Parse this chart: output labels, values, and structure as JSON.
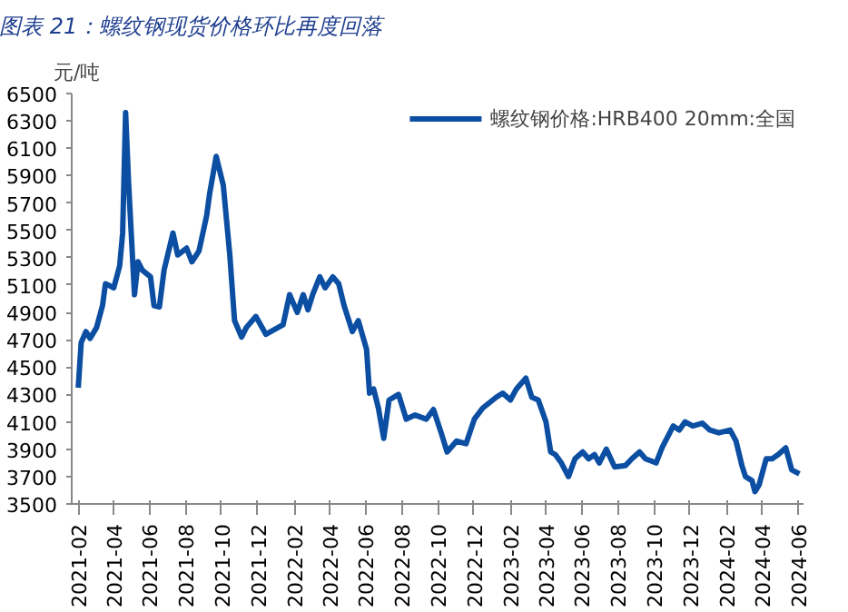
{
  "chart_data": {
    "type": "line",
    "title": "图表 21：螺纹钢现货价格环比再度回落",
    "ylabel": "元/吨",
    "x": [
      "2021-02-01",
      "2021-02-06",
      "2021-02-14",
      "2021-02-21",
      "2021-03-04",
      "2021-03-14",
      "2021-03-19",
      "2021-04-02",
      "2021-04-12",
      "2021-04-17",
      "2021-04-22",
      "2021-04-27",
      "2021-05-07",
      "2021-05-13",
      "2021-05-20",
      "2021-06-03",
      "2021-06-09",
      "2021-06-18",
      "2021-06-26",
      "2021-07-11",
      "2021-07-19",
      "2021-08-03",
      "2021-08-12",
      "2021-08-24",
      "2021-09-06",
      "2021-09-11",
      "2021-09-22",
      "2021-10-04",
      "2021-10-15",
      "2021-10-23",
      "2021-11-04",
      "2021-11-12",
      "2021-11-28",
      "2021-12-15",
      "2022-01-13",
      "2022-01-24",
      "2022-02-06",
      "2022-02-16",
      "2022-02-24",
      "2022-03-04",
      "2022-03-16",
      "2022-03-25",
      "2022-04-07",
      "2022-04-17",
      "2022-04-26",
      "2022-05-10",
      "2022-05-20",
      "2022-06-03",
      "2022-06-08",
      "2022-06-15",
      "2022-06-23",
      "2022-07-02",
      "2022-07-11",
      "2022-07-27",
      "2022-08-09",
      "2022-08-24",
      "2022-09-12",
      "2022-09-24",
      "2022-10-07",
      "2022-10-17",
      "2022-11-02",
      "2022-11-18",
      "2022-12-02",
      "2022-12-16",
      "2023-01-08",
      "2023-01-19",
      "2023-02-01",
      "2023-02-11",
      "2023-02-27",
      "2023-03-09",
      "2023-03-20",
      "2023-04-02",
      "2023-04-10",
      "2023-04-18",
      "2023-04-28",
      "2023-05-10",
      "2023-05-21",
      "2023-06-03",
      "2023-06-13",
      "2023-06-23",
      "2023-07-01",
      "2023-07-13",
      "2023-07-27",
      "2023-08-14",
      "2023-08-25",
      "2023-09-07",
      "2023-09-17",
      "2023-10-05",
      "2023-10-15",
      "2023-11-03",
      "2023-11-13",
      "2023-11-23",
      "2023-12-06",
      "2023-12-22",
      "2024-01-04",
      "2024-01-19",
      "2024-02-07",
      "2024-02-17",
      "2024-02-27",
      "2024-03-04",
      "2024-03-15",
      "2024-03-20",
      "2024-03-27",
      "2024-04-08",
      "2024-04-18",
      "2024-04-28",
      "2024-05-11",
      "2024-05-21",
      "2024-06-03"
    ],
    "series": [
      {
        "name": "螺纹钢价格:HRB400 20mm:全国",
        "color": "#0b4ea2",
        "values": [
          4350,
          4680,
          4760,
          4710,
          4790,
          4950,
          5110,
          5080,
          5240,
          5480,
          6360,
          5850,
          5030,
          5270,
          5210,
          5160,
          4950,
          4940,
          5210,
          5480,
          5320,
          5370,
          5270,
          5350,
          5610,
          5770,
          6040,
          5830,
          5320,
          4840,
          4720,
          4790,
          4870,
          4740,
          4810,
          5030,
          4900,
          5030,
          4920,
          5030,
          5160,
          5080,
          5160,
          5110,
          4950,
          4760,
          4840,
          4630,
          4310,
          4340,
          4200,
          3980,
          4260,
          4300,
          4120,
          4150,
          4120,
          4190,
          4020,
          3880,
          3960,
          3940,
          4120,
          4200,
          4280,
          4310,
          4260,
          4340,
          4420,
          4280,
          4260,
          4100,
          3880,
          3860,
          3800,
          3700,
          3830,
          3880,
          3830,
          3860,
          3800,
          3900,
          3770,
          3780,
          3830,
          3880,
          3830,
          3800,
          3910,
          4070,
          4040,
          4100,
          4070,
          4090,
          4040,
          4020,
          4040,
          3960,
          3780,
          3700,
          3670,
          3590,
          3640,
          3830,
          3830,
          3860,
          3910,
          3750,
          3720
        ]
      }
    ],
    "xlim": [
      "2021-01-21",
      "2024-06-10"
    ],
    "xticks": [
      "2021-02",
      "2021-04",
      "2021-06",
      "2021-08",
      "2021-10",
      "2021-12",
      "2022-02",
      "2022-04",
      "2022-06",
      "2022-08",
      "2022-10",
      "2022-12",
      "2023-02",
      "2023-04",
      "2023-06",
      "2023-08",
      "2023-10",
      "2023-12",
      "2024-02",
      "2024-04",
      "2024-06"
    ],
    "ylim": [
      3500,
      6500
    ],
    "yticks": [
      3500,
      3700,
      3900,
      4100,
      4300,
      4500,
      4700,
      4900,
      5100,
      5300,
      5500,
      5700,
      5900,
      6100,
      6300,
      6500
    ],
    "grid": false,
    "legend": "top",
    "line_style": "solid",
    "marker": "none"
  }
}
